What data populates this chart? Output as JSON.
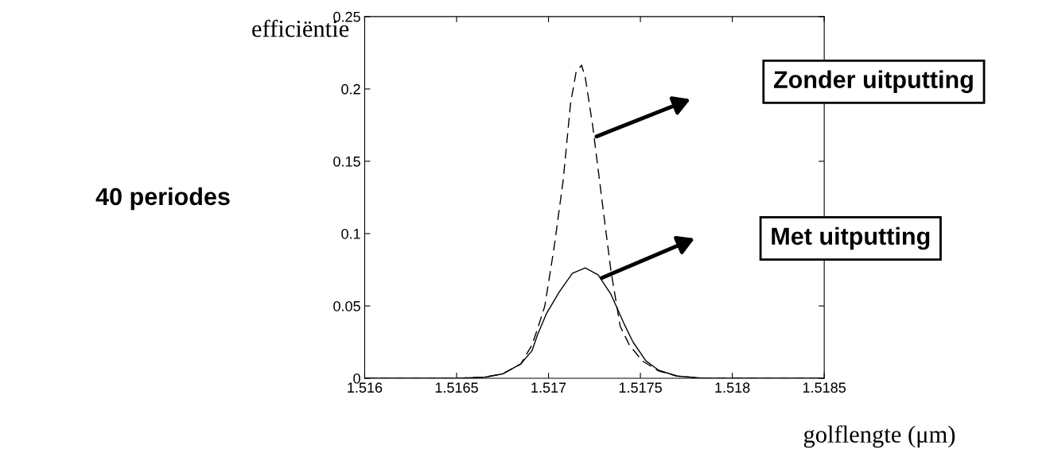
{
  "chart_data": {
    "type": "line",
    "xlabel": "golflengte (μm)",
    "ylabel": "efficiëntie",
    "xlim": [
      1.516,
      1.5185
    ],
    "xticks": [
      1.516,
      1.5165,
      1.517,
      1.5175,
      1.518,
      1.5185
    ],
    "ylim": [
      0,
      0.25
    ],
    "yticks": [
      0,
      0.05,
      0.1,
      0.15,
      0.2,
      0.25
    ],
    "grid": false,
    "legend": false,
    "annotations": [
      "40 periodes",
      "Zonder uitputting",
      "Met uitputting"
    ],
    "series": [
      {
        "color": "#000000",
        "line_style": "dashed",
        "x": [
          1.516,
          1.5165,
          1.51665,
          1.51675,
          1.51685,
          1.51691,
          1.51694,
          1.51698,
          1.51703,
          1.51708,
          1.51712,
          1.51715,
          1.51718,
          1.5172,
          1.51724,
          1.51729,
          1.51734,
          1.51739,
          1.51744,
          1.51751,
          1.5176,
          1.5177,
          1.51783,
          1.5185
        ],
        "values": [
          0,
          0,
          0.0007,
          0.003,
          0.01,
          0.023,
          0.034,
          0.05,
          0.09,
          0.137,
          0.19,
          0.2115,
          0.2164,
          0.208,
          0.175,
          0.124,
          0.074,
          0.036,
          0.023,
          0.012,
          0.005,
          0.0015,
          0.0002,
          0
        ]
      },
      {
        "color": "#000000",
        "line_style": "solid",
        "x": [
          1.516,
          1.5165,
          1.51665,
          1.51675,
          1.51685,
          1.51691,
          1.51694,
          1.51699,
          1.51706,
          1.51713,
          1.5172,
          1.51727,
          1.51734,
          1.51741,
          1.51746,
          1.51753,
          1.5176,
          1.5177,
          1.51783,
          1.5185
        ],
        "values": [
          0,
          0,
          0.0007,
          0.003,
          0.01,
          0.019,
          0.03,
          0.045,
          0.06,
          0.0726,
          0.0763,
          0.0715,
          0.058,
          0.038,
          0.025,
          0.012,
          0.0055,
          0.0015,
          0.0002,
          0
        ]
      }
    ]
  }
}
